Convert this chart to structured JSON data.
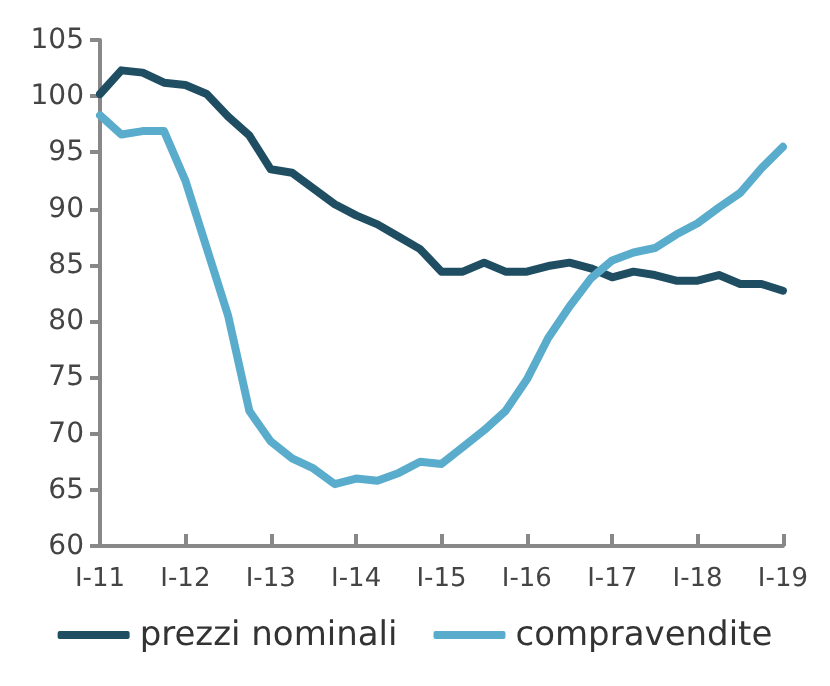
{
  "chart_data": {
    "type": "line",
    "categories": [
      "I-11",
      null,
      null,
      null,
      "I-12",
      null,
      null,
      null,
      "I-13",
      null,
      null,
      null,
      "I-14",
      null,
      null,
      null,
      "I-15",
      null,
      null,
      null,
      "I-16",
      null,
      null,
      null,
      "I-17",
      null,
      null,
      null,
      "I-18",
      null,
      null,
      null,
      "I-19"
    ],
    "series": [
      {
        "name": "prezzi nominali",
        "color": "#1f4e63",
        "values": [
          100.2,
          102.3,
          102.1,
          101.2,
          101.0,
          100.2,
          98.2,
          96.5,
          93.5,
          93.2,
          91.8,
          90.4,
          89.4,
          88.6,
          87.5,
          86.4,
          84.4,
          84.4,
          85.2,
          84.4,
          84.4,
          84.9,
          85.2,
          84.7,
          83.9,
          84.4,
          84.1,
          83.6,
          83.6,
          84.1,
          83.3,
          83.3,
          82.7
        ]
      },
      {
        "name": "compravendite",
        "color": "#5aaccc",
        "values": [
          98.3,
          96.6,
          96.9,
          96.9,
          92.5,
          86.5,
          80.5,
          72.0,
          69.3,
          67.8,
          66.9,
          65.5,
          66.0,
          65.8,
          66.5,
          67.5,
          67.3,
          68.8,
          70.3,
          72.0,
          74.8,
          78.5,
          81.3,
          83.8,
          85.4,
          86.1,
          86.5,
          87.7,
          88.7,
          90.1,
          91.4,
          93.6,
          95.5
        ]
      }
    ],
    "ylim": [
      60,
      105
    ],
    "yticks": [
      60,
      65,
      70,
      75,
      80,
      85,
      90,
      95,
      100,
      105
    ],
    "grid": false,
    "legend": "bottom",
    "marker": "none",
    "line_style": "solid"
  }
}
